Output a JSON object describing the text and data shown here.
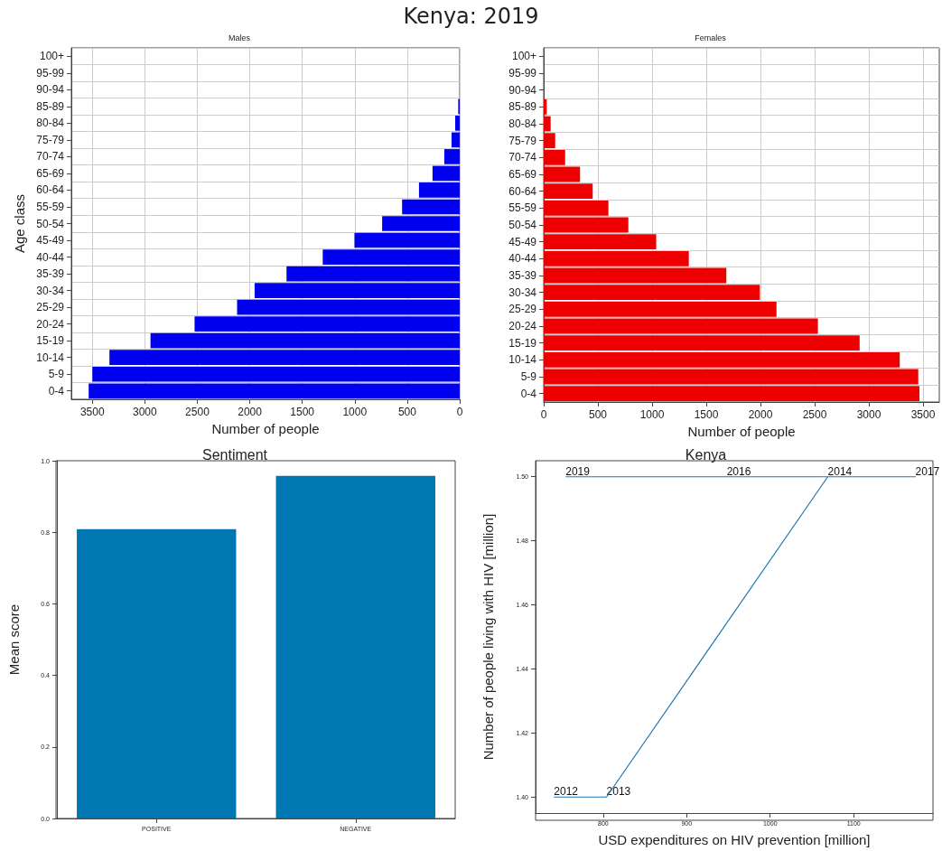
{
  "chart_data": [
    {
      "type": "bar",
      "orientation": "horizontal",
      "title": "Males",
      "annotations": [
        "Kenya: 2019"
      ],
      "xlabel": "Number of people",
      "ylabel": "Age class",
      "categories": [
        "100+",
        "95-99",
        "90-94",
        "85-89",
        "80-84",
        "75-79",
        "70-74",
        "65-69",
        "60-64",
        "55-59",
        "50-54",
        "45-49",
        "40-44",
        "35-39",
        "30-34",
        "25-29",
        "20-24",
        "15-19",
        "10-14",
        "5-9",
        "0-4"
      ],
      "values": [
        0,
        0,
        0,
        14,
        43,
        78,
        147,
        259,
        388,
        549,
        739,
        1003,
        1305,
        1650,
        1954,
        2121,
        2526,
        2946,
        3337,
        3500,
        3535
      ],
      "color": "#0000ee",
      "xlim": [
        3700,
        0
      ],
      "xticks": [
        3500,
        3000,
        2500,
        2000,
        1500,
        1000,
        500,
        0
      ],
      "grid": true
    },
    {
      "type": "bar",
      "orientation": "horizontal",
      "title": "Females",
      "xlabel": "Number of people",
      "categories": [
        "100+",
        "95-99",
        "90-94",
        "85-89",
        "80-84",
        "75-79",
        "70-74",
        "65-69",
        "60-64",
        "55-59",
        "50-54",
        "45-49",
        "40-44",
        "35-39",
        "30-34",
        "25-29",
        "20-24",
        "15-19",
        "10-14",
        "5-9",
        "0-4"
      ],
      "values": [
        0,
        0,
        0,
        28,
        64,
        106,
        198,
        335,
        452,
        597,
        781,
        1038,
        1339,
        1685,
        1994,
        2148,
        2530,
        2915,
        3285,
        3456,
        3467
      ],
      "color": "#ee0000",
      "xlim": [
        0,
        3650
      ],
      "xticks": [
        0,
        500,
        1000,
        1500,
        2000,
        2500,
        3000,
        3500
      ],
      "grid": true
    },
    {
      "type": "bar",
      "title": "Sentiment",
      "ylabel": "Mean score",
      "categories": [
        "POSITIVE",
        "NEGATIVE"
      ],
      "values": [
        0.809,
        0.958
      ],
      "color": "#0077b0",
      "ylim": [
        0,
        1
      ],
      "yticks": [
        {
          "value": 0,
          "label": "0.0"
        },
        {
          "value": 0.2,
          "label": "0.2"
        },
        {
          "value": 0.4,
          "label": "0.4"
        },
        {
          "value": 0.6,
          "label": "0.6"
        },
        {
          "value": 0.8,
          "label": "0.8"
        },
        {
          "value": 1,
          "label": "1.0"
        }
      ]
    },
    {
      "type": "line",
      "title": "Kenya",
      "xlabel": "USD expenditures on HIV prevention [million]",
      "ylabel": "Number of people living with HIV [million]",
      "x": [
        741,
        804,
        1069,
        948,
        1174,
        755
      ],
      "values": [
        1.4,
        1.4,
        1.5,
        1.5,
        1.5,
        1.5
      ],
      "color": "#1f77b4",
      "marker": "none",
      "xlim": [
        719,
        1195
      ],
      "xticks": [
        800,
        900,
        1000,
        1100
      ],
      "ylim": [
        1.395,
        1.505
      ],
      "yticks": [
        {
          "value": 1.4,
          "label": "1.40"
        },
        {
          "value": 1.42,
          "label": "1.42"
        },
        {
          "value": 1.44,
          "label": "1.44"
        },
        {
          "value": 1.46,
          "label": "1.46"
        },
        {
          "value": 1.48,
          "label": "1.48"
        },
        {
          "value": 1.5,
          "label": "1.50"
        }
      ],
      "annotations": [
        {
          "text": "2012",
          "x": 741,
          "y": 1.4
        },
        {
          "text": "2013",
          "x": 804,
          "y": 1.4
        },
        {
          "text": "2014",
          "x": 1069,
          "y": 1.5
        },
        {
          "text": "2016",
          "x": 948,
          "y": 1.5
        },
        {
          "text": "2017",
          "x": 1174,
          "y": 1.5
        },
        {
          "text": "2019",
          "x": 755,
          "y": 1.5
        }
      ]
    }
  ]
}
